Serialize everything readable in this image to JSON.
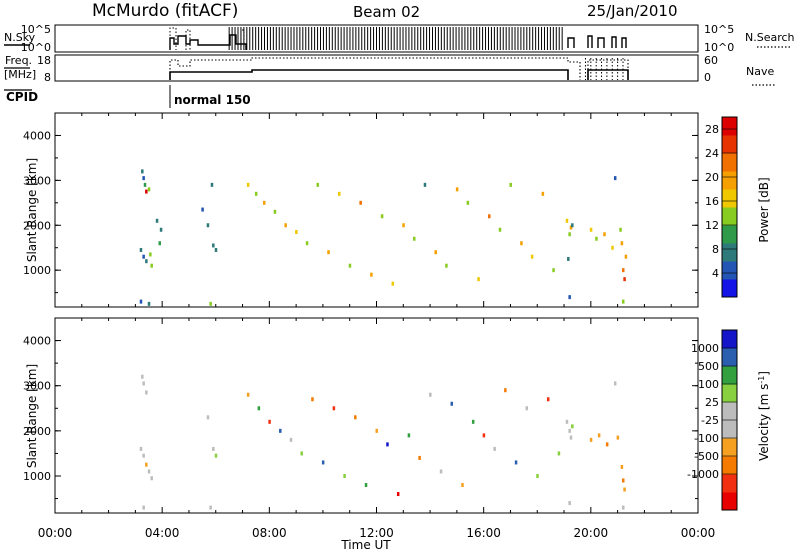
{
  "header": {
    "station": "McMurdo (fitACF)",
    "beam": "Beam 02",
    "date": "25/Jan/2010"
  },
  "top_panels": {
    "nsky": {
      "label_a": "N.Sky",
      "ticks": [
        "10^5",
        "10^0"
      ],
      "right_ticks": [
        "10^5",
        "10^0"
      ],
      "right_label": "N.Search"
    },
    "freq": {
      "label_a": "Freq.",
      "label_b": "[MHz]",
      "ticks": [
        "18",
        "8"
      ],
      "right_ticks": [
        "60",
        "0"
      ],
      "right_label": "Nave"
    },
    "cpid": {
      "label": "CPID",
      "mode": "normal 150"
    }
  },
  "colors": {
    "power_scale": [
      "#1414e6",
      "#2255b4",
      "#2e7a7a",
      "#2e9a4a",
      "#88cc22",
      "#f0c800",
      "#f5a000",
      "#f07000",
      "#e63300",
      "#dd0000"
    ],
    "velocity_scale": [
      "#e80000",
      "#f03010",
      "#f57a00",
      "#f5a020",
      "#bcbcbc",
      "#bcbcbc",
      "#88d040",
      "#33a040",
      "#2a5fb0",
      "#1414c8"
    ]
  },
  "chart_data": [
    {
      "type": "heatmap",
      "name": "power",
      "ylabel": "Slant Range [km]",
      "ylim": [
        180,
        4500
      ],
      "yticks": [
        "1000",
        "2000",
        "3000",
        "4000"
      ],
      "xticks": [
        "00:00",
        "04:00",
        "08:00",
        "12:00",
        "16:00",
        "20:00",
        "00:00"
      ],
      "xlim": [
        0,
        24
      ],
      "colorbar": {
        "label": "Power [dB]",
        "ticks": [
          "4",
          "8",
          "12",
          "16",
          "20",
          "24",
          "28"
        ],
        "range": [
          0,
          30
        ]
      },
      "points": [
        {
          "t": 3.25,
          "r": 3200,
          "v": 6
        },
        {
          "t": 3.3,
          "r": 3050,
          "v": 4
        },
        {
          "t": 3.35,
          "r": 2900,
          "v": 10
        },
        {
          "t": 3.4,
          "r": 2750,
          "v": 28
        },
        {
          "t": 3.5,
          "r": 2800,
          "v": 12
        },
        {
          "t": 3.2,
          "r": 1450,
          "v": 6
        },
        {
          "t": 3.3,
          "r": 1300,
          "v": 4
        },
        {
          "t": 3.4,
          "r": 1200,
          "v": 8
        },
        {
          "t": 3.55,
          "r": 1350,
          "v": 12
        },
        {
          "t": 3.6,
          "r": 1100,
          "v": 14
        },
        {
          "t": 3.9,
          "r": 1600,
          "v": 10
        },
        {
          "t": 3.95,
          "r": 1900,
          "v": 6
        },
        {
          "t": 3.2,
          "r": 300,
          "v": 4
        },
        {
          "t": 3.5,
          "r": 250,
          "v": 8
        },
        {
          "t": 3.8,
          "r": 2100,
          "v": 6
        },
        {
          "t": 5.5,
          "r": 2350,
          "v": 4
        },
        {
          "t": 5.7,
          "r": 2000,
          "v": 6
        },
        {
          "t": 5.9,
          "r": 1550,
          "v": 6
        },
        {
          "t": 6.0,
          "r": 1450,
          "v": 8
        },
        {
          "t": 5.8,
          "r": 250,
          "v": 12
        },
        {
          "t": 5.85,
          "r": 2900,
          "v": 6
        },
        {
          "t": 7.2,
          "r": 2900,
          "v": 16
        },
        {
          "t": 7.5,
          "r": 2700,
          "v": 12
        },
        {
          "t": 7.8,
          "r": 2500,
          "v": 20
        },
        {
          "t": 8.2,
          "r": 2300,
          "v": 14
        },
        {
          "t": 8.6,
          "r": 2000,
          "v": 18
        },
        {
          "t": 9.0,
          "r": 1850,
          "v": 16
        },
        {
          "t": 9.4,
          "r": 1600,
          "v": 14
        },
        {
          "t": 9.8,
          "r": 2900,
          "v": 12
        },
        {
          "t": 10.2,
          "r": 1400,
          "v": 20
        },
        {
          "t": 10.6,
          "r": 2700,
          "v": 16
        },
        {
          "t": 11.0,
          "r": 1100,
          "v": 12
        },
        {
          "t": 11.4,
          "r": 2500,
          "v": 22
        },
        {
          "t": 11.8,
          "r": 900,
          "v": 18
        },
        {
          "t": 12.2,
          "r": 2200,
          "v": 14
        },
        {
          "t": 12.6,
          "r": 700,
          "v": 16
        },
        {
          "t": 13.0,
          "r": 2000,
          "v": 20
        },
        {
          "t": 13.4,
          "r": 1700,
          "v": 12
        },
        {
          "t": 13.8,
          "r": 2900,
          "v": 6
        },
        {
          "t": 14.2,
          "r": 1400,
          "v": 18
        },
        {
          "t": 14.6,
          "r": 1100,
          "v": 14
        },
        {
          "t": 15.0,
          "r": 2800,
          "v": 20
        },
        {
          "t": 15.4,
          "r": 2500,
          "v": 12
        },
        {
          "t": 15.8,
          "r": 800,
          "v": 16
        },
        {
          "t": 16.2,
          "r": 2200,
          "v": 22
        },
        {
          "t": 16.6,
          "r": 1900,
          "v": 14
        },
        {
          "t": 17.0,
          "r": 2900,
          "v": 12
        },
        {
          "t": 17.4,
          "r": 1600,
          "v": 18
        },
        {
          "t": 17.8,
          "r": 1300,
          "v": 16
        },
        {
          "t": 18.2,
          "r": 2700,
          "v": 20
        },
        {
          "t": 18.6,
          "r": 1000,
          "v": 12
        },
        {
          "t": 19.1,
          "r": 2100,
          "v": 16
        },
        {
          "t": 19.2,
          "r": 1800,
          "v": 12
        },
        {
          "t": 19.25,
          "r": 1950,
          "v": 20
        },
        {
          "t": 19.3,
          "r": 2000,
          "v": 8
        },
        {
          "t": 19.15,
          "r": 1250,
          "v": 6
        },
        {
          "t": 19.2,
          "r": 400,
          "v": 4
        },
        {
          "t": 20.0,
          "r": 1900,
          "v": 16
        },
        {
          "t": 20.2,
          "r": 1700,
          "v": 12
        },
        {
          "t": 20.5,
          "r": 1800,
          "v": 20
        },
        {
          "t": 20.8,
          "r": 1500,
          "v": 16
        },
        {
          "t": 20.9,
          "r": 3050,
          "v": 4
        },
        {
          "t": 21.1,
          "r": 1900,
          "v": 14
        },
        {
          "t": 21.15,
          "r": 1600,
          "v": 20
        },
        {
          "t": 21.2,
          "r": 1000,
          "v": 22
        },
        {
          "t": 21.25,
          "r": 800,
          "v": 24
        },
        {
          "t": 21.3,
          "r": 1300,
          "v": 18
        },
        {
          "t": 21.2,
          "r": 300,
          "v": 12
        }
      ]
    },
    {
      "type": "heatmap",
      "name": "velocity",
      "ylabel": "Slant Range [km]",
      "ylim": [
        180,
        4500
      ],
      "yticks": [
        "1000",
        "2000",
        "3000",
        "4000"
      ],
      "xticks": [
        "00:00",
        "04:00",
        "08:00",
        "12:00",
        "16:00",
        "20:00",
        "00:00"
      ],
      "xlim": [
        0,
        24
      ],
      "xlabel": "Time UT",
      "colorbar": {
        "label": "Velocity [m s^-1]",
        "ticks": [
          "1000",
          "500",
          "100",
          "25",
          "-25",
          "-100",
          "-500",
          "-1000"
        ],
        "range": [
          -1200,
          1200
        ]
      },
      "points": [
        {
          "t": 3.25,
          "r": 3200,
          "v": 0
        },
        {
          "t": 3.3,
          "r": 3050,
          "v": 10
        },
        {
          "t": 3.4,
          "r": 2850,
          "v": -10
        },
        {
          "t": 3.2,
          "r": 1600,
          "v": 150
        },
        {
          "t": 3.3,
          "r": 1450,
          "v": -200
        },
        {
          "t": 3.4,
          "r": 1250,
          "v": -300
        },
        {
          "t": 3.5,
          "r": 1100,
          "v": -150
        },
        {
          "t": 3.6,
          "r": 950,
          "v": -50
        },
        {
          "t": 3.3,
          "r": 300,
          "v": -80
        },
        {
          "t": 5.7,
          "r": 2300,
          "v": 200
        },
        {
          "t": 5.9,
          "r": 1600,
          "v": 150
        },
        {
          "t": 6.0,
          "r": 1450,
          "v": 300
        },
        {
          "t": 5.8,
          "r": 300,
          "v": 10
        },
        {
          "t": 7.2,
          "r": 2800,
          "v": -400
        },
        {
          "t": 7.6,
          "r": 2500,
          "v": 600
        },
        {
          "t": 8.0,
          "r": 2200,
          "v": -800
        },
        {
          "t": 8.4,
          "r": 2000,
          "v": 900
        },
        {
          "t": 8.8,
          "r": 1800,
          "v": -200
        },
        {
          "t": 9.2,
          "r": 1500,
          "v": 400
        },
        {
          "t": 9.6,
          "r": 2700,
          "v": -600
        },
        {
          "t": 10.0,
          "r": 1300,
          "v": 800
        },
        {
          "t": 10.4,
          "r": 2500,
          "v": -900
        },
        {
          "t": 10.8,
          "r": 1000,
          "v": 300
        },
        {
          "t": 11.2,
          "r": 2300,
          "v": -500
        },
        {
          "t": 11.6,
          "r": 800,
          "v": 700
        },
        {
          "t": 12.0,
          "r": 2000,
          "v": -300
        },
        {
          "t": 12.4,
          "r": 1700,
          "v": 1000
        },
        {
          "t": 12.8,
          "r": 600,
          "v": -1000
        },
        {
          "t": 13.2,
          "r": 1900,
          "v": 500
        },
        {
          "t": 13.6,
          "r": 1400,
          "v": -700
        },
        {
          "t": 14.0,
          "r": 2800,
          "v": 200
        },
        {
          "t": 14.4,
          "r": 1100,
          "v": -100
        },
        {
          "t": 14.8,
          "r": 2600,
          "v": 900
        },
        {
          "t": 15.2,
          "r": 800,
          "v": -400
        },
        {
          "t": 15.6,
          "r": 2200,
          "v": 600
        },
        {
          "t": 16.0,
          "r": 1900,
          "v": -800
        },
        {
          "t": 16.4,
          "r": 1600,
          "v": 100
        },
        {
          "t": 16.8,
          "r": 2900,
          "v": -600
        },
        {
          "t": 17.2,
          "r": 1300,
          "v": 800
        },
        {
          "t": 17.6,
          "r": 2500,
          "v": -200
        },
        {
          "t": 18.0,
          "r": 1000,
          "v": 400
        },
        {
          "t": 18.4,
          "r": 2700,
          "v": -900
        },
        {
          "t": 18.8,
          "r": 1500,
          "v": 300
        },
        {
          "t": 19.1,
          "r": 2200,
          "v": 150
        },
        {
          "t": 19.2,
          "r": 2000,
          "v": 200
        },
        {
          "t": 19.25,
          "r": 1850,
          "v": 100
        },
        {
          "t": 19.3,
          "r": 2100,
          "v": 300
        },
        {
          "t": 19.2,
          "r": 400,
          "v": -100
        },
        {
          "t": 20.0,
          "r": 1800,
          "v": -400
        },
        {
          "t": 20.3,
          "r": 1900,
          "v": -300
        },
        {
          "t": 20.6,
          "r": 1700,
          "v": -500
        },
        {
          "t": 20.9,
          "r": 3050,
          "v": -20
        },
        {
          "t": 21.0,
          "r": 1850,
          "v": -350
        },
        {
          "t": 21.15,
          "r": 1200,
          "v": -450
        },
        {
          "t": 21.2,
          "r": 900,
          "v": -600
        },
        {
          "t": 21.25,
          "r": 700,
          "v": -300
        },
        {
          "t": 21.2,
          "r": 300,
          "v": 10
        }
      ]
    }
  ]
}
